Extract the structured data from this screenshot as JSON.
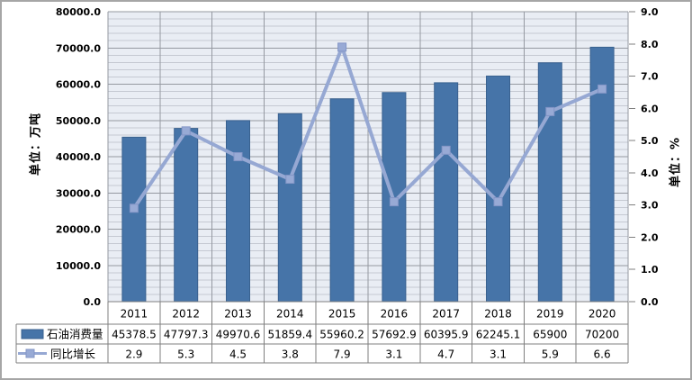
{
  "chart_data": {
    "type": "bar+line combo",
    "categories": [
      "2011",
      "2012",
      "2013",
      "2014",
      "2015",
      "2016",
      "2017",
      "2018",
      "2019",
      "2020"
    ],
    "series": [
      {
        "name": "石油消费量",
        "type": "bar",
        "axis": "left",
        "values": [
          "45378.5",
          "47797.3",
          "49970.6",
          "51859.4",
          "55960.2",
          "57692.9",
          "60395.9",
          "62245.1",
          "65900",
          "70200"
        ]
      },
      {
        "name": "同比增长",
        "type": "line",
        "axis": "right",
        "values": [
          "2.9",
          "5.3",
          "4.5",
          "3.8",
          "7.9",
          "3.1",
          "4.7",
          "3.1",
          "5.9",
          "6.6"
        ]
      }
    ],
    "left_axis": {
      "title": "单位：万吨",
      "min": 0,
      "max": 80000,
      "major_step": 10000,
      "minor_step": 2000,
      "decimals": 1
    },
    "right_axis": {
      "title": "单位：%",
      "min": 0,
      "max": 9,
      "major_step": 1,
      "decimals": 1
    },
    "legend_position": "table left column",
    "grid": "horizontal major+minor, vertical category lines"
  },
  "colors": {
    "bar_fill": "#4674A8",
    "bar_border": "#39618F",
    "line": "#96A8D3",
    "marker_fill": "#98AAD5",
    "marker_border": "#8395C6",
    "plot_bg": "#E9EDF4",
    "grid_minor": "#C5C9D2",
    "grid_major": "#9599A1",
    "table_border": "#7F7F7F",
    "text": "#000000"
  }
}
